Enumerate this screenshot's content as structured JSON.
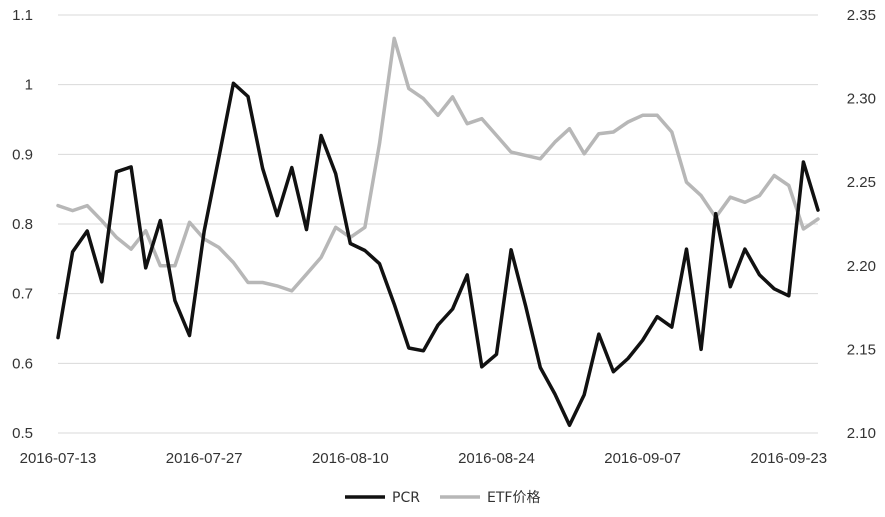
{
  "chart_data": {
    "type": "line",
    "x_tick_labels": [
      "2016-07-13",
      "2016-07-27",
      "2016-08-10",
      "2016-08-24",
      "2016-09-07",
      "2016-09-23"
    ],
    "y_left": {
      "lim": [
        0.5,
        1.1
      ],
      "ticks": [
        "0.5",
        "0.6",
        "0.7",
        "0.8",
        "0.9",
        "1",
        "1.1"
      ]
    },
    "y_right": {
      "lim": [
        2.1,
        2.35
      ],
      "ticks": [
        "2.10",
        "2.15",
        "2.20",
        "2.25",
        "2.30",
        "2.35"
      ]
    },
    "grid": "horizontal",
    "legend_position": "bottom",
    "series": [
      {
        "name": "PCR",
        "axis": "left",
        "color": "#111111",
        "values": [
          0.637,
          0.76,
          0.79,
          0.717,
          0.875,
          0.882,
          0.737,
          0.805,
          0.69,
          0.64,
          0.79,
          0.895,
          1.002,
          0.983,
          0.88,
          0.812,
          0.881,
          0.792,
          0.927,
          0.872,
          0.772,
          0.762,
          0.743,
          0.685,
          0.622,
          0.618,
          0.655,
          0.678,
          0.727,
          0.595,
          0.613,
          0.763,
          0.682,
          0.594,
          0.556,
          0.511,
          0.555,
          0.642,
          0.588,
          0.607,
          0.633,
          0.667,
          0.652,
          0.764,
          0.62,
          0.815,
          0.71,
          0.764,
          0.727,
          0.707,
          0.697,
          0.889,
          0.82
        ]
      },
      {
        "name": "ETF价格",
        "axis": "right",
        "color": "#b7b7b7",
        "values": [
          2.236,
          2.233,
          2.236,
          2.227,
          2.217,
          2.21,
          2.221,
          2.2,
          2.2,
          2.226,
          2.216,
          2.211,
          2.202,
          2.19,
          2.19,
          2.188,
          2.185,
          2.195,
          2.205,
          2.223,
          2.217,
          2.223,
          2.273,
          2.336,
          2.306,
          2.3,
          2.29,
          2.301,
          2.285,
          2.288,
          2.278,
          2.268,
          2.266,
          2.264,
          2.274,
          2.282,
          2.267,
          2.279,
          2.28,
          2.286,
          2.29,
          2.29,
          2.28,
          2.25,
          2.242,
          2.229,
          2.241,
          2.238,
          2.242,
          2.254,
          2.248,
          2.222,
          2.228
        ]
      }
    ]
  }
}
